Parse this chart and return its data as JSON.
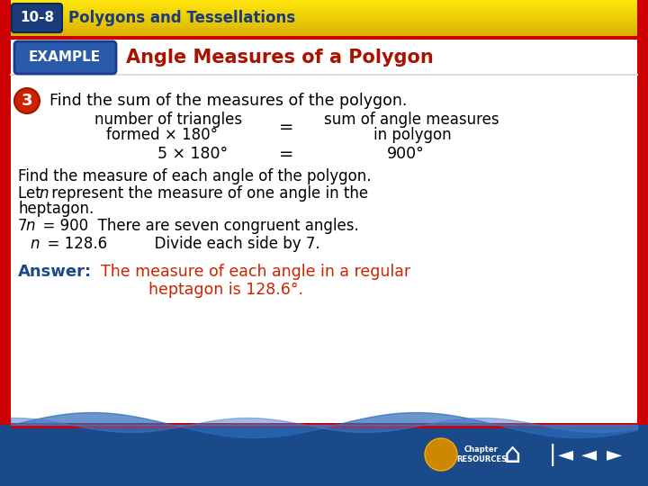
{
  "bg_color": "#f0f0f0",
  "title_text": "Angle Measures of a Polygon",
  "title_color": "#aa1100",
  "example_label": "EXAMPLE",
  "example_box_color": "#2255aa",
  "top_bar_yellow": "#f0c000",
  "top_bar_blue": "#1a4a8a",
  "top_section_text": "10-8",
  "top_section_label": "Polygons and Tessellations",
  "step_circle_color": "#cc2200",
  "step_number": "3",
  "line1": "Find the sum of the measures of the polygon.",
  "line2a": "number of triangles",
  "line2b": "=",
  "line2c": "sum of angle measures",
  "line3a": "formed × 180°",
  "line3b": "in polygon",
  "line4a": "5 × 180°",
  "line4b": "=",
  "line4c": "900°",
  "para1": "Find the measure of each angle of the polygon.",
  "para2_pre": "Let ",
  "para2_italic": "n",
  "para2_post": " represent the measure of one angle in the",
  "para3": "heptagon.",
  "para4_num": "7",
  "para4_italic": "n",
  "para4_post": "  = 900  There are seven congruent angles.",
  "para5_italic": "n",
  "para5_post": "  = 128.6          Divide each side by 7.",
  "answer_label": "Answer:",
  "answer_label_color": "#1a4a8a",
  "answer_text1": "The measure of each angle in a regular",
  "answer_text2": "heptagon is 128.6°.",
  "answer_text_color": "#cc2200",
  "main_bg": "#ffffff",
  "border_color": "#cc0000",
  "bottom_blue": "#1a4a8a",
  "bottom_blue2": "#2a6ab8"
}
